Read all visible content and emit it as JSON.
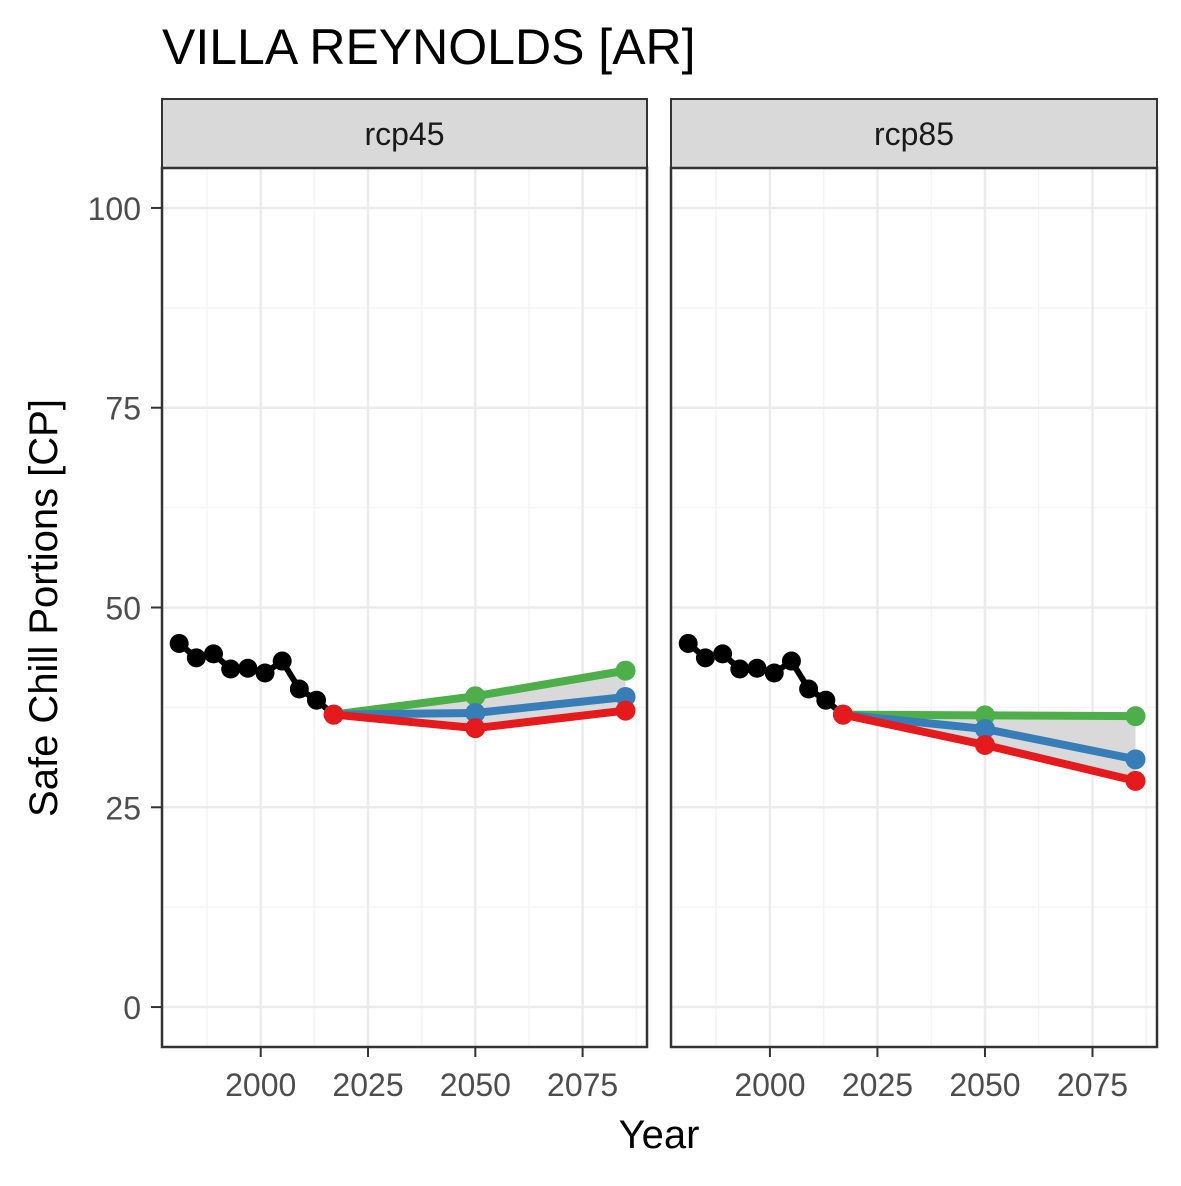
{
  "chart_data": {
    "type": "line",
    "title": "VILLA REYNOLDS [AR]",
    "xlabel": "Year",
    "ylabel": "Safe Chill Portions [CP]",
    "xlim": [
      1977,
      2090
    ],
    "ylim": [
      -5,
      105
    ],
    "x_ticks": [
      2000,
      2025,
      2050,
      2075
    ],
    "y_ticks": [
      0,
      25,
      50,
      75,
      100
    ],
    "x_tick_labels": [
      "2000",
      "2025",
      "2050",
      "2075"
    ],
    "y_tick_labels": [
      "0",
      "25",
      "50",
      "75",
      "100"
    ],
    "grid": true,
    "colors": {
      "observed": "#000000",
      "scenario_a": "#4DAF4A",
      "scenario_b": "#377EB8",
      "scenario_c": "#E41A1C",
      "band": "#D9D9D9",
      "strip": "#D9D9D9",
      "grid_major": "#EBEBEB",
      "grid_minor": "#F4F4F4",
      "frame": "#333333"
    },
    "panels": [
      {
        "strip_label": "rcp45",
        "observed": {
          "x": [
            1981,
            1985,
            1989,
            1993,
            1997,
            2001,
            2005,
            2009,
            2013,
            2017
          ],
          "y": [
            45.5,
            43.7,
            44.2,
            42.3,
            42.4,
            41.8,
            43.3,
            39.8,
            38.4,
            36.6
          ]
        },
        "series": [
          {
            "color_key": "scenario_a",
            "x": [
              2017,
              2050,
              2085
            ],
            "y": [
              36.6,
              38.9,
              42.1
            ]
          },
          {
            "color_key": "scenario_b",
            "x": [
              2017,
              2050,
              2085
            ],
            "y": [
              36.6,
              36.8,
              38.8
            ]
          },
          {
            "color_key": "scenario_c",
            "x": [
              2017,
              2050,
              2085
            ],
            "y": [
              36.6,
              34.9,
              37.1
            ]
          }
        ]
      },
      {
        "strip_label": "rcp85",
        "observed": {
          "x": [
            1981,
            1985,
            1989,
            1993,
            1997,
            2001,
            2005,
            2009,
            2013,
            2017
          ],
          "y": [
            45.5,
            43.7,
            44.2,
            42.3,
            42.4,
            41.8,
            43.3,
            39.8,
            38.4,
            36.6
          ]
        },
        "series": [
          {
            "color_key": "scenario_a",
            "x": [
              2017,
              2050,
              2085
            ],
            "y": [
              36.6,
              36.5,
              36.4
            ]
          },
          {
            "color_key": "scenario_b",
            "x": [
              2017,
              2050,
              2085
            ],
            "y": [
              36.6,
              34.8,
              31.0
            ]
          },
          {
            "color_key": "scenario_c",
            "x": [
              2017,
              2050,
              2085
            ],
            "y": [
              36.6,
              32.8,
              28.3
            ]
          }
        ]
      }
    ]
  }
}
